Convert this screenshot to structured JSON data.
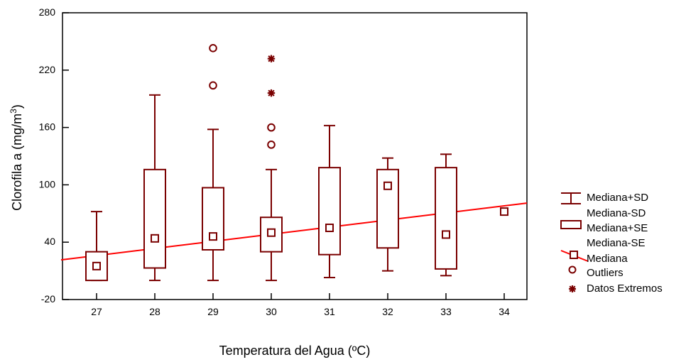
{
  "chart_data": {
    "type": "box",
    "title": "",
    "xlabel": "Temperatura del Agua (ºC)",
    "ylabel_main": "Clorofila a (mg/m",
    "ylabel_superscript": "3",
    "ylabel_suffix": ")",
    "categories": [
      "27",
      "28",
      "29",
      "30",
      "31",
      "32",
      "33",
      "34"
    ],
    "yticks": [
      "-20",
      "40",
      "100",
      "160",
      "220",
      "280"
    ],
    "ylim": [
      -20,
      280
    ],
    "colors": {
      "series": "#7a0000",
      "trend": "#ff0000",
      "axis": "#000000"
    },
    "boxes": [
      {
        "category": "27",
        "median": 15,
        "box_low": 0,
        "box_high": 30,
        "whisker_low": 0,
        "whisker_high": 72
      },
      {
        "category": "28",
        "median": 44,
        "box_low": 13,
        "box_high": 116,
        "whisker_low": 0,
        "whisker_high": 194
      },
      {
        "category": "29",
        "median": 46,
        "box_low": 32,
        "box_high": 97,
        "whisker_low": 0,
        "whisker_high": 158
      },
      {
        "category": "30",
        "median": 50,
        "box_low": 30,
        "box_high": 66,
        "whisker_low": 0,
        "whisker_high": 116
      },
      {
        "category": "31",
        "median": 55,
        "box_low": 27,
        "box_high": 118,
        "whisker_low": 3,
        "whisker_high": 162
      },
      {
        "category": "32",
        "median": 99,
        "box_low": 34,
        "box_high": 116,
        "whisker_low": 10,
        "whisker_high": 128
      },
      {
        "category": "33",
        "median": 48,
        "box_low": 12,
        "box_high": 118,
        "whisker_low": 5,
        "whisker_high": 132
      },
      {
        "category": "34",
        "median": 72,
        "box_low": null,
        "box_high": null,
        "whisker_low": null,
        "whisker_high": null
      }
    ],
    "outliers": [
      {
        "category": "29",
        "value": 243
      },
      {
        "category": "29",
        "value": 204
      },
      {
        "category": "30",
        "value": 160
      },
      {
        "category": "30",
        "value": 142
      }
    ],
    "extremes": [
      {
        "category": "30",
        "value": 232
      },
      {
        "category": "30",
        "value": 196
      }
    ],
    "trendline": {
      "start_category": "27",
      "start_value": 26,
      "end_category": "34",
      "end_value": 78
    },
    "legend": {
      "items": [
        {
          "label": "Mediana+SD"
        },
        {
          "label": "Mediana-SD"
        },
        {
          "label": "Mediana+SE"
        },
        {
          "label": "Mediana-SE"
        },
        {
          "label": "Mediana"
        },
        {
          "label": "Outliers"
        },
        {
          "label": "Datos Extremos"
        }
      ]
    }
  }
}
